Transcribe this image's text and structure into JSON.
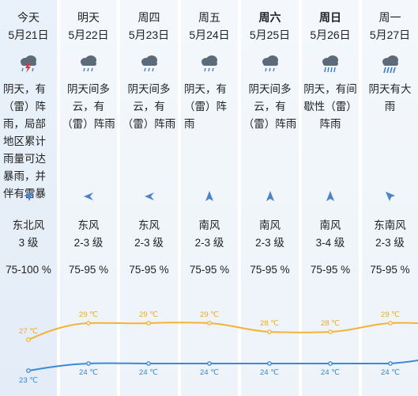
{
  "colors": {
    "high_line": "#f5b335",
    "low_line": "#3a8ad8",
    "high_text": "#f0a824",
    "low_text": "#3a86d0",
    "icon_cloud": "#5c6b7a",
    "icon_rain": "#3f7fcf",
    "icon_lightning": "#e0333a",
    "wind_arrow": "#4d83c8"
  },
  "days": [
    {
      "dow": "今天",
      "date": "5月21日",
      "icon": "thunderstorm-with-lightning-icon",
      "desc": "阴天，有（雷）阵雨，局部地区累计雨量可达暴雨，并伴有雷暴",
      "wind_dir": "东北风",
      "wind_level": "3 级",
      "humidity": "75-100 %",
      "wind_arrow": "northeast-arrow-icon"
    },
    {
      "dow": "明天",
      "date": "5月22日",
      "icon": "thunder-shower-icon",
      "desc": "阴天间多云，有（雷）阵雨",
      "wind_dir": "东风",
      "wind_level": "2-3 级",
      "humidity": "75-95 %",
      "wind_arrow": "east-arrow-icon"
    },
    {
      "dow": "周四",
      "date": "5月23日",
      "icon": "thunder-shower-icon",
      "desc": "阴天间多云，有（雷）阵雨",
      "wind_dir": "东风",
      "wind_level": "2-3 级",
      "humidity": "75-95 %",
      "wind_arrow": "east-arrow-icon"
    },
    {
      "dow": "周五",
      "date": "5月24日",
      "icon": "thunder-shower-icon",
      "desc": "阴天，有（雷）阵雨",
      "wind_dir": "南风",
      "wind_level": "2-3 级",
      "humidity": "75-95 %",
      "wind_arrow": "south-arrow-icon"
    },
    {
      "dow": "周六",
      "date": "5月25日",
      "icon": "thunder-shower-icon",
      "desc": "阴天间多云，有（雷）阵雨",
      "wind_dir": "南风",
      "wind_level": "2-3 级",
      "humidity": "75-95 %",
      "wind_arrow": "south-arrow-icon"
    },
    {
      "dow": "周日",
      "date": "5月26日",
      "icon": "showers-icon",
      "desc": "阴天，有间歇性（雷）阵雨",
      "wind_dir": "南风",
      "wind_level": "3-4 级",
      "humidity": "75-95 %",
      "wind_arrow": "south-arrow-icon"
    },
    {
      "dow": "周一",
      "date": "5月27日",
      "icon": "heavy-rain-icon",
      "desc": "阴天有大雨",
      "wind_dir": "东南风",
      "wind_level": "2-3 级",
      "humidity": "75-95 %",
      "wind_arrow": "southeast-arrow-icon"
    }
  ],
  "temps": {
    "high": [
      "27 ℃",
      "29 ℃",
      "29 ℃",
      "29 ℃",
      "28 ℃",
      "28 ℃",
      "29 ℃"
    ],
    "low": [
      "23 ℃",
      "24 ℃",
      "24 ℃",
      "24 ℃",
      "24 ℃",
      "24 ℃",
      "24 ℃"
    ],
    "high_values": [
      27,
      29,
      29,
      29,
      28,
      28,
      29
    ],
    "low_values": [
      23,
      24,
      24,
      24,
      24,
      24,
      24
    ]
  }
}
